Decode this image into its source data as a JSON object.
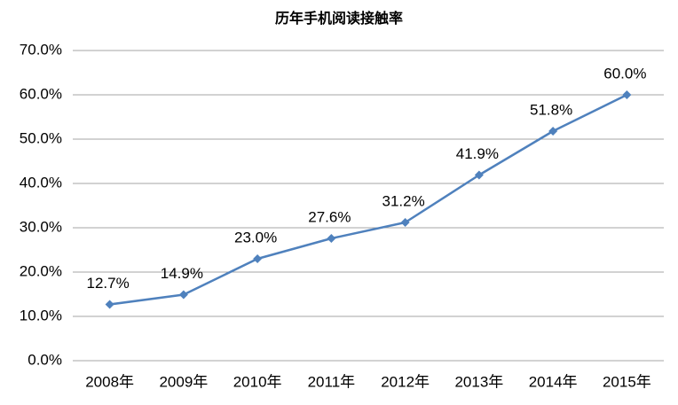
{
  "chart_data": {
    "type": "line",
    "title": "历年手机阅读接触率",
    "categories": [
      "2008年",
      "2009年",
      "2010年",
      "2011年",
      "2012年",
      "2013年",
      "2014年",
      "2015年"
    ],
    "values": [
      12.7,
      14.9,
      23.0,
      27.6,
      31.2,
      41.9,
      51.8,
      60.0
    ],
    "value_labels": [
      "12.7%",
      "14.9%",
      "23.0%",
      "27.6%",
      "31.2%",
      "41.9%",
      "51.8%",
      "60.0%"
    ],
    "color": "#4f81bd",
    "ylim": [
      0,
      70
    ],
    "yticks": [
      {
        "value": 0,
        "label": "0.0%"
      },
      {
        "value": 10,
        "label": "10.0%"
      },
      {
        "value": 20,
        "label": "20.0%"
      },
      {
        "value": 30,
        "label": "30.0%"
      },
      {
        "value": 40,
        "label": "40.0%"
      },
      {
        "value": 50,
        "label": "50.0%"
      },
      {
        "value": 60,
        "label": "60.0%"
      },
      {
        "value": 70,
        "label": "70.0%"
      }
    ],
    "grid": true
  }
}
